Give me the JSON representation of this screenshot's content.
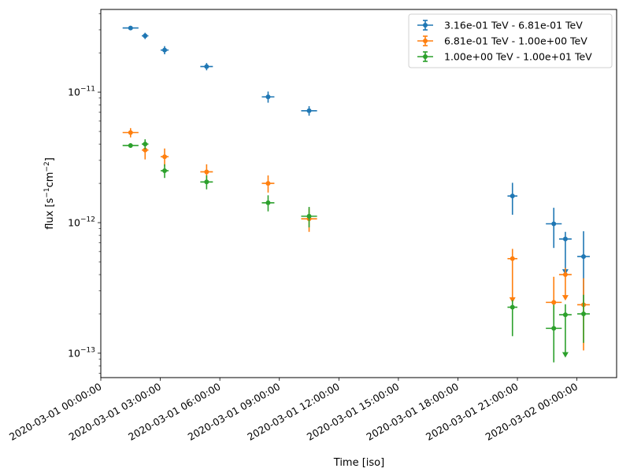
{
  "chart_data": {
    "type": "scatter",
    "title": "",
    "xlabel": "Time [iso]",
    "ylabel_parts": [
      "flux [s",
      "−1",
      "cm",
      "−2",
      "]"
    ],
    "y_scale": "log",
    "ylim": [
      6.5e-14,
      4.3e-11
    ],
    "xlim": [
      "2020-03-01 00:00:00",
      "2020-03-02 02:00:00"
    ],
    "x_ticks": [
      "2020-03-01 00:00:00",
      "2020-03-01 03:00:00",
      "2020-03-01 06:00:00",
      "2020-03-01 09:00:00",
      "2020-03-01 12:00:00",
      "2020-03-01 15:00:00",
      "2020-03-01 18:00:00",
      "2020-03-01 21:00:00",
      "2020-03-02 00:00:00"
    ],
    "y_ticks": [
      {
        "value": 1e-13,
        "mant": "10",
        "exp": "−13"
      },
      {
        "value": 1e-12,
        "mant": "10",
        "exp": "−12"
      },
      {
        "value": 1e-11,
        "mant": "10",
        "exp": "−11"
      }
    ],
    "grid": false,
    "legend_position": "top-right",
    "series": [
      {
        "name": "3.16e-01 TeV - 6.81e-01 TeV",
        "color": "#1f77b4",
        "points": [
          {
            "x": "2020-03-01 01:30:00",
            "xerr": "00:24:00",
            "y": 3.1e-11,
            "yerr": [
              5e-13,
              5e-13
            ]
          },
          {
            "x": "2020-03-01 02:14:00",
            "xerr": "00:10:00",
            "y": 2.7e-11,
            "yerr": [
              1.5e-12,
              1.5e-12
            ]
          },
          {
            "x": "2020-03-01 03:13:00",
            "xerr": "00:12:00",
            "y": 2.1e-11,
            "yerr": [
              1.5e-12,
              1.5e-12
            ]
          },
          {
            "x": "2020-03-01 05:20:00",
            "xerr": "00:19:00",
            "y": 1.57e-11,
            "yerr": [
              1e-12,
              1e-12
            ]
          },
          {
            "x": "2020-03-01 08:26:00",
            "xerr": "00:19:00",
            "y": 9.2e-12,
            "yerr": [
              9e-13,
              9e-13
            ]
          },
          {
            "x": "2020-03-01 10:30:00",
            "xerr": "00:24:00",
            "y": 7.2e-12,
            "yerr": [
              6e-13,
              6e-13
            ]
          },
          {
            "x": "2020-03-01 20:45:00",
            "xerr": "00:15:00",
            "y": 1.6e-12,
            "yerr": [
              4.5e-13,
              4.2e-13
            ]
          },
          {
            "x": "2020-03-01 22:50:00",
            "xerr": "00:24:00",
            "y": 9.8e-13,
            "yerr": [
              3.4e-13,
              3.2e-13
            ]
          },
          {
            "x": "2020-03-01 23:25:00",
            "xerr": "00:19:00",
            "y": 7.5e-13,
            "yerr": [
              3.4e-13,
              1e-13
            ],
            "upper_limit": true
          },
          {
            "x": "2020-03-02 00:20:00",
            "xerr": "00:19:00",
            "y": 5.5e-13,
            "yerr": [
              3.3e-13,
              3.1e-13
            ]
          }
        ]
      },
      {
        "name": "6.81e-01 TeV - 1.00e+00 TeV",
        "color": "#ff7f0e",
        "points": [
          {
            "x": "2020-03-01 01:30:00",
            "xerr": "00:24:00",
            "y": 4.9e-12,
            "yerr": [
              4e-13,
              4e-13
            ]
          },
          {
            "x": "2020-03-01 02:14:00",
            "xerr": "00:10:00",
            "y": 3.6e-12,
            "yerr": [
              5.5e-13,
              5.5e-13
            ]
          },
          {
            "x": "2020-03-01 03:13:00",
            "xerr": "00:12:00",
            "y": 3.2e-12,
            "yerr": [
              5e-13,
              5e-13
            ]
          },
          {
            "x": "2020-03-01 05:20:00",
            "xerr": "00:19:00",
            "y": 2.45e-12,
            "yerr": [
              3.5e-13,
              3.5e-13
            ]
          },
          {
            "x": "2020-03-01 08:26:00",
            "xerr": "00:19:00",
            "y": 2e-12,
            "yerr": [
              3e-13,
              3e-13
            ]
          },
          {
            "x": "2020-03-01 10:30:00",
            "xerr": "00:24:00",
            "y": 1.07e-12,
            "yerr": [
              2.2e-13,
              2.2e-13
            ]
          },
          {
            "x": "2020-03-01 20:45:00",
            "xerr": "00:15:00",
            "y": 5.3e-13,
            "yerr": [
              2.8e-13,
              1e-13
            ],
            "upper_limit": true
          },
          {
            "x": "2020-03-01 22:50:00",
            "xerr": "00:24:00",
            "y": 2.45e-13,
            "yerr": [
              6.5e-14,
              1.4e-13
            ]
          },
          {
            "x": "2020-03-01 23:25:00",
            "xerr": "00:19:00",
            "y": 4e-13,
            "yerr": [
              1.4e-13,
              5e-14
            ],
            "upper_limit": true
          },
          {
            "x": "2020-03-02 00:20:00",
            "xerr": "00:19:00",
            "y": 2.35e-13,
            "yerr": [
              1.3e-13,
              1.4e-13
            ]
          }
        ]
      },
      {
        "name": "1.00e+00 TeV - 1.00e+01 TeV",
        "color": "#2ca02c",
        "points": [
          {
            "x": "2020-03-01 01:30:00",
            "xerr": "00:24:00",
            "y": 3.9e-12,
            "yerr": [
              1.5e-13,
              1.5e-13
            ]
          },
          {
            "x": "2020-03-01 02:14:00",
            "xerr": "00:10:00",
            "y": 4e-12,
            "yerr": [
              3.5e-13,
              3.5e-13
            ]
          },
          {
            "x": "2020-03-01 03:13:00",
            "xerr": "00:12:00",
            "y": 2.5e-12,
            "yerr": [
              3e-13,
              3e-13
            ]
          },
          {
            "x": "2020-03-01 05:20:00",
            "xerr": "00:19:00",
            "y": 2.05e-12,
            "yerr": [
              2.5e-13,
              2.5e-13
            ]
          },
          {
            "x": "2020-03-01 08:26:00",
            "xerr": "00:19:00",
            "y": 1.42e-12,
            "yerr": [
              2e-13,
              2e-13
            ]
          },
          {
            "x": "2020-03-01 10:30:00",
            "xerr": "00:24:00",
            "y": 1.12e-12,
            "yerr": [
              2e-13,
              2e-13
            ]
          },
          {
            "x": "2020-03-01 20:45:00",
            "xerr": "00:15:00",
            "y": 2.25e-13,
            "yerr": [
              9e-14,
              3e-14
            ]
          },
          {
            "x": "2020-03-01 22:50:00",
            "xerr": "00:24:00",
            "y": 1.55e-13,
            "yerr": [
              7e-14,
              8e-14
            ]
          },
          {
            "x": "2020-03-01 23:25:00",
            "xerr": "00:19:00",
            "y": 1.97e-13,
            "yerr": [
              1.02e-13,
              4e-14
            ],
            "upper_limit": true
          },
          {
            "x": "2020-03-02 00:20:00",
            "xerr": "00:19:00",
            "y": 2e-13,
            "yerr": [
              8e-14,
              8e-14
            ]
          }
        ]
      }
    ]
  }
}
